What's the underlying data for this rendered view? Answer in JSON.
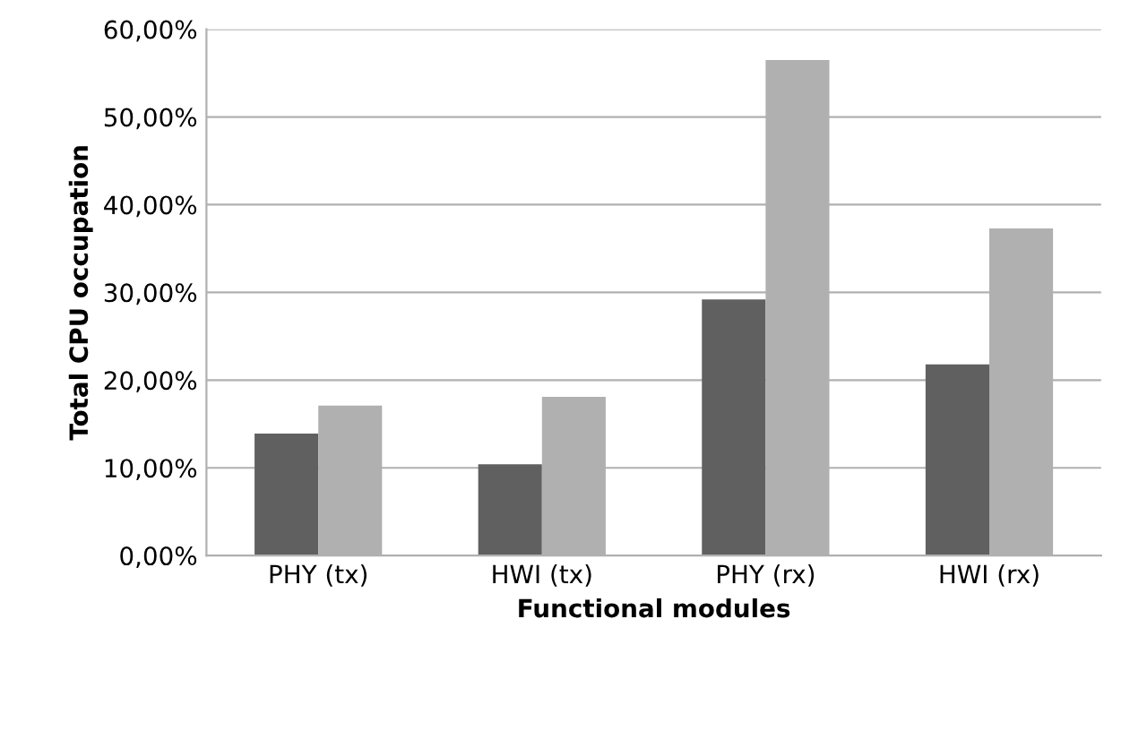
{
  "chart_data": {
    "type": "bar",
    "xlabel": "Functional modules",
    "ylabel": "Total CPU occupation",
    "categories": [
      "PHY (tx)",
      "HWI (tx)",
      "PHY (rx)",
      "HWI (rx)"
    ],
    "series": [
      {
        "color": "#606060",
        "values": [
          13.9,
          10.4,
          29.2,
          21.8
        ]
      },
      {
        "color": "#b0b0b0",
        "values": [
          17.1,
          18.1,
          56.5,
          37.3
        ]
      }
    ],
    "ylim": [
      0,
      60
    ],
    "yticks": [
      {
        "value": 0,
        "label": "0,00%"
      },
      {
        "value": 10,
        "label": "10,00%"
      },
      {
        "value": 20,
        "label": "20,00%"
      },
      {
        "value": 30,
        "label": "30,00%"
      },
      {
        "value": 40,
        "label": "40,00%"
      },
      {
        "value": 50,
        "label": "50,00%"
      },
      {
        "value": 60,
        "label": "60,00%"
      }
    ],
    "grid": "y"
  }
}
